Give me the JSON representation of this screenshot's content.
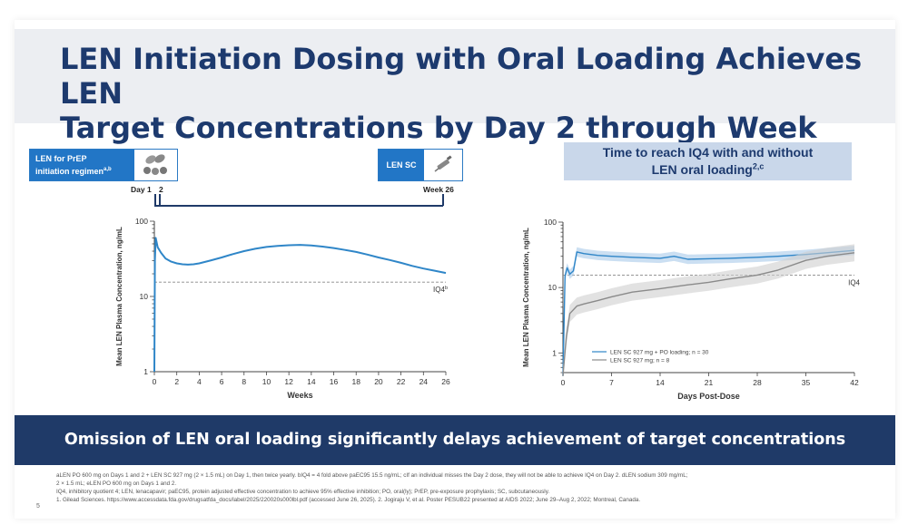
{
  "slide": {
    "title_line1": "LEN Initiation Dosing with Oral Loading Achieves LEN",
    "title_line2": "Target Concentrations by Day 2 through Week 26",
    "title_sup": "1",
    "page_number": "5"
  },
  "left_panel": {
    "regimen_label_line1": "LEN for PrEP",
    "regimen_label_line2": "initiation regimen",
    "regimen_label_sup": "a,b",
    "sc_label": "LEN SC",
    "timeline": {
      "day_label": "Day 1",
      "day2_label": "2",
      "week_label": "Week 26"
    },
    "pill_icon": "pill-icon",
    "syringe_icon": "syringe-icon"
  },
  "right_panel": {
    "chart_title_line1": "Time to reach IQ4 with and without",
    "chart_title_line2": "LEN oral loading",
    "chart_title_sup": "2,c"
  },
  "banner": {
    "text": "Omission of LEN oral loading significantly delays achievement of target concentrations"
  },
  "footnotes": [
    "aLEN PO 600 mg on Days 1 and 2 + LEN SC 927 mg (2 × 1.5 mL) on Day 1, then twice yearly. bIQ4 = 4 fold above paEC95 15.5 ng/mL; cIf an individual misses the Day 2 dose, they will not be able to achieve IQ4 on Day 2. dLEN sodium 309 mg/mL;",
    "2 × 1.5 mL; eLEN PO 600 mg on Days 1 and 2.",
    "IQ4, inhibitory quotient 4; LEN, lenacapavir; paEC95, protein adjusted effective concentration to achieve 95% effective inhibition; PO, oral(ly); PrEP, pre-exposure prophylaxis; SC, subcutaneously.",
    "1. Gilead Sciences. https://www.accessdata.fda.gov/drugsatfda_docs/label/2025/220020s000lbl.pdf (accessed June 26, 2025). 2. Jogiraju V, et al. Poster PESUB22 presented at AIDS 2022; June 29–Aug 2, 2022; Montreal, Canada."
  ],
  "colors": {
    "navy": "#1f3a68",
    "blue": "#2276c6",
    "line_blue": "#2f86c8",
    "gray_line": "#8a8a8a",
    "band_gray": "#cfcfcf",
    "band_blue": "#a9c9ea"
  },
  "chart_data": [
    {
      "type": "line",
      "xlabel": "Weeks",
      "ylabel": "Mean LEN Plasma Concentration, ng/mL",
      "xlim": [
        0,
        26
      ],
      "ylim": [
        1,
        100
      ],
      "log_y": true,
      "x_ticks": [
        0,
        2,
        4,
        6,
        8,
        10,
        12,
        14,
        16,
        18,
        20,
        22,
        24,
        26
      ],
      "y_ticks": [
        1,
        10,
        100
      ],
      "reference_line": {
        "value": 15.5,
        "label": "IQ4",
        "label_sup": "b"
      },
      "series": [
        {
          "color": "#2f86c8",
          "points": [
            [
              0,
              1
            ],
            [
              0.05,
              30
            ],
            [
              0.12,
              60
            ],
            [
              0.3,
              45
            ],
            [
              0.6,
              38
            ],
            [
              1.0,
              32
            ],
            [
              1.5,
              29
            ],
            [
              2.0,
              27.5
            ],
            [
              2.5,
              26.8
            ],
            [
              3.0,
              26.5
            ],
            [
              3.5,
              26.8
            ],
            [
              4,
              27.5
            ],
            [
              5,
              30
            ],
            [
              6,
              33
            ],
            [
              7,
              36.5
            ],
            [
              8,
              40
            ],
            [
              9,
              43
            ],
            [
              10,
              45.5
            ],
            [
              11,
              47
            ],
            [
              12,
              48
            ],
            [
              13,
              48.5
            ],
            [
              14,
              47.5
            ],
            [
              15,
              46
            ],
            [
              16,
              44
            ],
            [
              17,
              41.5
            ],
            [
              18,
              39
            ],
            [
              19,
              36
            ],
            [
              20,
              33
            ],
            [
              21,
              30.5
            ],
            [
              22,
              28
            ],
            [
              23,
              25.5
            ],
            [
              24,
              23.5
            ],
            [
              25,
              22
            ],
            [
              26,
              20.5
            ]
          ]
        }
      ]
    },
    {
      "type": "line",
      "xlabel": "Days Post-Dose",
      "ylabel": "Mean LEN Plasma Concentration, ng/mL",
      "xlim": [
        0,
        42
      ],
      "ylim": [
        0.5,
        100
      ],
      "log_y": true,
      "x_ticks": [
        0,
        7,
        14,
        21,
        28,
        35,
        42
      ],
      "y_ticks": [
        1,
        10,
        100
      ],
      "reference_line": {
        "value": 15.5,
        "label": "IQ4"
      },
      "legend": "bottom-left",
      "series": [
        {
          "name": "LEN SC 927 mg + PO loading; n = 30",
          "color": "#2f86c8",
          "points": [
            [
              0,
              0.45
            ],
            [
              0.3,
              15
            ],
            [
              0.6,
              20
            ],
            [
              1,
              16
            ],
            [
              1.5,
              18
            ],
            [
              2,
              35
            ],
            [
              3,
              33
            ],
            [
              5,
              31
            ],
            [
              7,
              30
            ],
            [
              10,
              29
            ],
            [
              14,
              28
            ],
            [
              16,
              30
            ],
            [
              18,
              27
            ],
            [
              21,
              27.5
            ],
            [
              24,
              28
            ],
            [
              28,
              29
            ],
            [
              31,
              30
            ],
            [
              35,
              32
            ],
            [
              38,
              34
            ],
            [
              42,
              37
            ]
          ]
        },
        {
          "name": "LEN SC 927 mg; n = 8",
          "color": "#8a8a8a",
          "points": [
            [
              0,
              0.45
            ],
            [
              0.5,
              1.8
            ],
            [
              1,
              4
            ],
            [
              2,
              5.2
            ],
            [
              3,
              5.6
            ],
            [
              5,
              6.3
            ],
            [
              7,
              7.2
            ],
            [
              10,
              8.5
            ],
            [
              14,
              9.6
            ],
            [
              18,
              11
            ],
            [
              21,
              12
            ],
            [
              24,
              13.5
            ],
            [
              28,
              15.5
            ],
            [
              31,
              18.5
            ],
            [
              35,
              26
            ],
            [
              38,
              30
            ],
            [
              42,
              34
            ]
          ]
        }
      ]
    }
  ]
}
